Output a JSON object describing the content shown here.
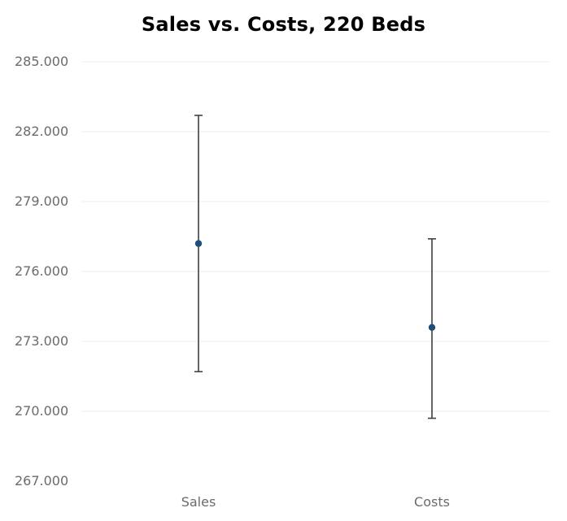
{
  "chart_data": {
    "type": "errorbar",
    "title": "Sales vs. Costs, 220 Beds",
    "xlabel": "",
    "ylabel": "",
    "categories": [
      "Sales",
      "Costs"
    ],
    "points": [
      {
        "category": "Sales",
        "mean": 277.2,
        "lower": 271.7,
        "upper": 282.7
      },
      {
        "category": "Costs",
        "mean": 273.6,
        "lower": 269.7,
        "upper": 277.4
      }
    ],
    "ylim": [
      267,
      285
    ],
    "yticks": [
      267,
      270,
      273,
      276,
      279,
      282,
      285
    ],
    "ytick_labels": [
      "267.000",
      "270.000",
      "273.000",
      "276.000",
      "279.000",
      "282.000",
      "285.000"
    ],
    "grid": true,
    "legend": "none"
  },
  "colors": {
    "point": "#1f4e79",
    "whisker": "#404040",
    "grid": "#ececec",
    "tick_text": "#6b6b6b"
  }
}
